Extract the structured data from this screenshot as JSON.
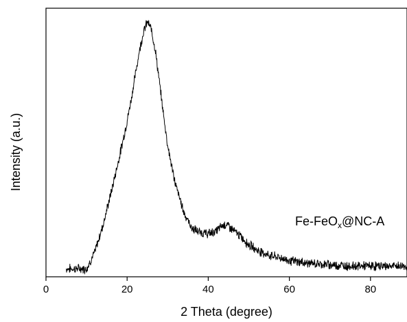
{
  "chart_data": {
    "type": "line",
    "title": "",
    "xlabel": "2 Theta (degree)",
    "ylabel": "Intensity (a.u.)",
    "xlim": [
      0,
      89
    ],
    "ylim": [
      0,
      1
    ],
    "y_ticks_shown": false,
    "x_ticks": [
      "0",
      "20",
      "40",
      "60",
      "80"
    ],
    "grid": false,
    "legend_position": "right, above curve",
    "series": [
      {
        "name": "Fe-FeOx@NC-A",
        "label_main": "Fe-FeO",
        "label_sub": "x",
        "label_tail": "@NC-A",
        "color": "#000000",
        "noisy": true,
        "x": [
          5,
          7,
          10,
          12,
          14,
          16,
          18,
          20,
          21,
          22,
          23,
          24,
          25,
          26,
          27,
          28,
          29,
          30,
          31,
          32,
          33,
          34,
          35,
          36,
          38,
          40,
          42,
          43,
          44,
          45,
          46,
          48,
          50,
          52,
          55,
          58,
          60,
          65,
          70,
          75,
          80,
          85,
          89
        ],
        "y": [
          0.03,
          0.03,
          0.03,
          0.09,
          0.19,
          0.31,
          0.44,
          0.58,
          0.66,
          0.75,
          0.84,
          0.91,
          0.95,
          0.92,
          0.84,
          0.72,
          0.6,
          0.49,
          0.41,
          0.34,
          0.29,
          0.24,
          0.21,
          0.18,
          0.165,
          0.16,
          0.17,
          0.185,
          0.195,
          0.19,
          0.175,
          0.15,
          0.12,
          0.1,
          0.08,
          0.07,
          0.06,
          0.05,
          0.045,
          0.04,
          0.04,
          0.04,
          0.04
        ]
      }
    ]
  }
}
